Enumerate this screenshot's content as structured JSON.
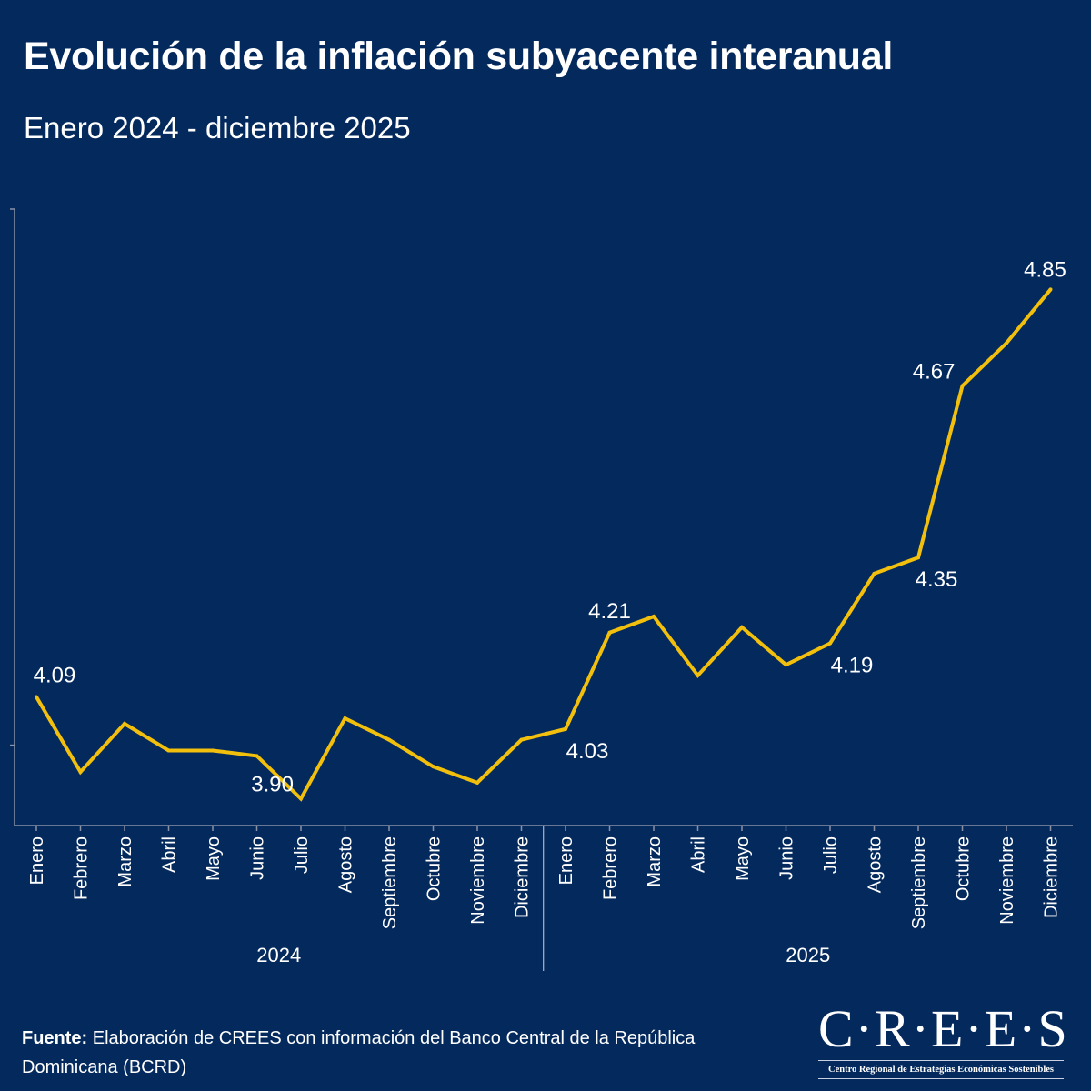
{
  "chart_data": {
    "type": "line",
    "title": "Evolución de la inflación subyacente interanual",
    "subtitle": "Enero 2024 - diciembre 2025",
    "xlabel": "",
    "ylabel": "",
    "ylim": [
      3.85,
      5.0
    ],
    "grid": false,
    "legend": "none",
    "line_color": "#f2c00c",
    "background_color": "#04295d",
    "categories": [
      "Enero",
      "Febrero",
      "Marzo",
      "Abril",
      "Mayo",
      "Junio",
      "Julio",
      "Agosto",
      "Septiembre",
      "Octubre",
      "Noviembre",
      "Diciembre",
      "Enero",
      "Febrero",
      "Marzo",
      "Abril",
      "Mayo",
      "Junio",
      "Julio",
      "Agosto",
      "Septiembre",
      "Octubre",
      "Noviembre",
      "Diciembre"
    ],
    "groups": [
      {
        "label": "2024",
        "count": 12
      },
      {
        "label": "2025",
        "count": 12
      }
    ],
    "values": [
      4.09,
      3.95,
      4.04,
      3.99,
      3.99,
      3.98,
      3.9,
      4.05,
      4.01,
      3.96,
      3.93,
      4.01,
      4.03,
      4.21,
      4.24,
      4.13,
      4.22,
      4.15,
      4.19,
      4.32,
      4.35,
      4.67,
      4.75,
      4.85
    ],
    "data_labels": [
      {
        "index": 0,
        "text": "4.09",
        "pos": "above"
      },
      {
        "index": 6,
        "text": "3.90",
        "pos": "left"
      },
      {
        "index": 12,
        "text": "4.03",
        "pos": "below"
      },
      {
        "index": 13,
        "text": "4.21",
        "pos": "above"
      },
      {
        "index": 18,
        "text": "4.19",
        "pos": "below"
      },
      {
        "index": 20,
        "text": "4.35",
        "pos": "below"
      },
      {
        "index": 21,
        "text": "4.67",
        "pos": "left"
      },
      {
        "index": 23,
        "text": "4.85",
        "pos": "above"
      }
    ]
  },
  "footer": {
    "source_label": "Fuente:",
    "source_text": " Elaboración de CREES con información del Banco Central de la República Dominicana (BCRD)"
  },
  "logo": {
    "name": "C·R·E·E·S",
    "tagline": "Centro Regional de Estrategias Económicas Sostenibles"
  }
}
